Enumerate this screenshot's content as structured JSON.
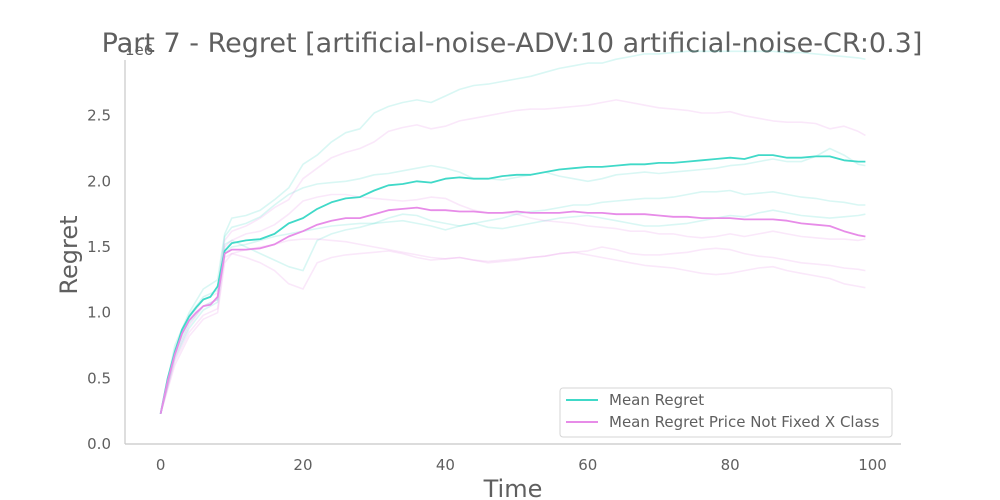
{
  "chart_data": {
    "type": "line",
    "title": "Part 7 - Regret [artificial-noise-ADV:10 artificial-noise-CR:0.3]",
    "xlabel": "Time",
    "ylabel": "Regret",
    "y_exponent_label": "1e6",
    "xlim": [
      -5,
      104
    ],
    "ylim": [
      0,
      3.0
    ],
    "x_ticks": [
      0,
      20,
      40,
      60,
      80,
      100
    ],
    "y_ticks": [
      0.0,
      0.5,
      1.0,
      1.5,
      2.0,
      2.5
    ],
    "x_tick_labels": [
      "0",
      "20",
      "40",
      "60",
      "80",
      "100"
    ],
    "y_tick_labels": [
      "0.0",
      "0.5",
      "1.0",
      "1.5",
      "2.0",
      "2.5"
    ],
    "grid": false,
    "legend_position": "lower-right",
    "series": [
      {
        "name": "Mean Regret",
        "color": "#40d9c8",
        "x": [
          0,
          1,
          2,
          3,
          4,
          5,
          6,
          7,
          8,
          9,
          10,
          12,
          14,
          16,
          18,
          20,
          22,
          24,
          26,
          28,
          30,
          32,
          34,
          36,
          38,
          40,
          42,
          44,
          46,
          48,
          50,
          52,
          54,
          56,
          58,
          60,
          62,
          64,
          66,
          68,
          70,
          72,
          74,
          76,
          78,
          80,
          82,
          84,
          86,
          88,
          90,
          92,
          94,
          96,
          98,
          99
        ],
        "values": [
          0.23,
          0.5,
          0.7,
          0.87,
          0.97,
          1.04,
          1.1,
          1.12,
          1.2,
          1.47,
          1.53,
          1.55,
          1.56,
          1.6,
          1.68,
          1.72,
          1.79,
          1.84,
          1.87,
          1.88,
          1.93,
          1.97,
          1.98,
          2.0,
          1.99,
          2.02,
          2.03,
          2.02,
          2.02,
          2.04,
          2.05,
          2.05,
          2.07,
          2.09,
          2.1,
          2.11,
          2.11,
          2.12,
          2.13,
          2.13,
          2.14,
          2.14,
          2.15,
          2.16,
          2.17,
          2.18,
          2.17,
          2.2,
          2.2,
          2.18,
          2.18,
          2.19,
          2.19,
          2.16,
          2.15,
          2.15
        ]
      },
      {
        "name": "Mean Regret Price Not Fixed X Class",
        "color": "#e78ce8",
        "x": [
          0,
          1,
          2,
          3,
          4,
          5,
          6,
          7,
          8,
          9,
          10,
          12,
          14,
          16,
          18,
          20,
          22,
          24,
          26,
          28,
          30,
          32,
          34,
          36,
          38,
          40,
          42,
          44,
          46,
          48,
          50,
          52,
          54,
          56,
          58,
          60,
          62,
          64,
          66,
          68,
          70,
          72,
          74,
          76,
          78,
          80,
          82,
          84,
          86,
          88,
          90,
          92,
          94,
          96,
          98,
          99
        ],
        "values": [
          0.23,
          0.48,
          0.68,
          0.84,
          0.94,
          1.0,
          1.05,
          1.06,
          1.12,
          1.45,
          1.48,
          1.48,
          1.49,
          1.52,
          1.58,
          1.62,
          1.67,
          1.7,
          1.72,
          1.72,
          1.75,
          1.78,
          1.79,
          1.8,
          1.78,
          1.78,
          1.77,
          1.77,
          1.76,
          1.76,
          1.77,
          1.76,
          1.76,
          1.76,
          1.77,
          1.76,
          1.76,
          1.75,
          1.75,
          1.75,
          1.74,
          1.73,
          1.73,
          1.72,
          1.72,
          1.72,
          1.71,
          1.71,
          1.71,
          1.7,
          1.68,
          1.67,
          1.66,
          1.62,
          1.59,
          1.58
        ]
      },
      {
        "color": "#40d9c8",
        "x": [
          0,
          2,
          4,
          6,
          8,
          9,
          10,
          12,
          14,
          16,
          18,
          20,
          22,
          24,
          26,
          28,
          30,
          32,
          34,
          36,
          38,
          40,
          42,
          44,
          46,
          48,
          50,
          52,
          54,
          56,
          58,
          60,
          62,
          64,
          66,
          68,
          70,
          72,
          74,
          76,
          78,
          80,
          82,
          84,
          86,
          88,
          90,
          92,
          94,
          96,
          98,
          99
        ],
        "values": [
          0.23,
          0.75,
          1.0,
          1.18,
          1.25,
          1.6,
          1.72,
          1.74,
          1.78,
          1.86,
          1.95,
          2.13,
          2.2,
          2.3,
          2.37,
          2.4,
          2.52,
          2.57,
          2.6,
          2.62,
          2.6,
          2.65,
          2.7,
          2.73,
          2.74,
          2.76,
          2.78,
          2.8,
          2.83,
          2.86,
          2.88,
          2.9,
          2.9,
          2.93,
          2.95,
          2.97,
          2.97,
          2.98,
          2.99,
          2.99,
          2.99,
          2.99,
          2.99,
          2.99,
          2.99,
          2.98,
          2.98,
          2.97,
          2.96,
          2.95,
          2.94,
          2.93
        ]
      },
      {
        "color": "#40d9c8",
        "x": [
          0,
          2,
          4,
          6,
          8,
          9,
          10,
          12,
          14,
          16,
          18,
          20,
          22,
          24,
          26,
          28,
          30,
          32,
          34,
          36,
          38,
          40,
          42,
          44,
          46,
          48,
          50,
          52,
          54,
          56,
          58,
          60,
          62,
          64,
          66,
          68,
          70,
          72,
          74,
          76,
          78,
          80,
          82,
          84,
          86,
          88,
          90,
          92,
          94,
          96,
          98,
          99
        ],
        "values": [
          0.23,
          0.72,
          0.98,
          1.12,
          1.17,
          1.58,
          1.65,
          1.68,
          1.73,
          1.82,
          1.9,
          1.95,
          1.98,
          1.99,
          2.0,
          2.02,
          2.05,
          2.06,
          2.08,
          2.1,
          2.12,
          2.1,
          2.07,
          2.02,
          2.02,
          2.01,
          2.03,
          2.05,
          2.07,
          2.04,
          2.02,
          2.0,
          2.02,
          2.05,
          2.06,
          2.07,
          2.06,
          2.07,
          2.08,
          2.09,
          2.1,
          2.12,
          2.13,
          2.15,
          2.17,
          2.15,
          2.15,
          2.19,
          2.25,
          2.2,
          2.13,
          2.12
        ]
      },
      {
        "color": "#40d9c8",
        "x": [
          0,
          2,
          4,
          6,
          8,
          9,
          10,
          12,
          14,
          16,
          18,
          20,
          22,
          24,
          26,
          28,
          30,
          32,
          34,
          36,
          38,
          40,
          42,
          44,
          46,
          48,
          50,
          52,
          54,
          56,
          58,
          60,
          62,
          64,
          66,
          68,
          70,
          72,
          74,
          76,
          78,
          80,
          82,
          84,
          86,
          88,
          90,
          92,
          94,
          96,
          98,
          99
        ],
        "values": [
          0.23,
          0.68,
          0.92,
          1.05,
          1.1,
          1.52,
          1.55,
          1.5,
          1.45,
          1.4,
          1.35,
          1.32,
          1.55,
          1.6,
          1.63,
          1.65,
          1.68,
          1.72,
          1.75,
          1.74,
          1.7,
          1.68,
          1.66,
          1.68,
          1.7,
          1.72,
          1.75,
          1.77,
          1.78,
          1.8,
          1.82,
          1.82,
          1.84,
          1.85,
          1.86,
          1.87,
          1.87,
          1.88,
          1.9,
          1.92,
          1.92,
          1.93,
          1.9,
          1.91,
          1.92,
          1.9,
          1.88,
          1.87,
          1.85,
          1.84,
          1.82,
          1.82
        ]
      },
      {
        "color": "#40d9c8",
        "x": [
          0,
          2,
          4,
          6,
          8,
          9,
          10,
          12,
          14,
          16,
          18,
          20,
          22,
          24,
          26,
          28,
          30,
          32,
          34,
          36,
          38,
          40,
          42,
          44,
          46,
          48,
          50,
          52,
          54,
          56,
          58,
          60,
          62,
          64,
          66,
          68,
          70,
          72,
          74,
          76,
          78,
          80,
          82,
          84,
          86,
          88,
          90,
          92,
          94,
          96,
          98,
          99
        ],
        "values": [
          0.23,
          0.65,
          0.88,
          1.02,
          1.08,
          1.45,
          1.5,
          1.52,
          1.55,
          1.58,
          1.6,
          1.62,
          1.64,
          1.66,
          1.67,
          1.68,
          1.68,
          1.69,
          1.7,
          1.68,
          1.66,
          1.63,
          1.66,
          1.68,
          1.65,
          1.64,
          1.66,
          1.68,
          1.7,
          1.72,
          1.73,
          1.74,
          1.72,
          1.7,
          1.68,
          1.66,
          1.66,
          1.67,
          1.68,
          1.7,
          1.72,
          1.74,
          1.73,
          1.76,
          1.78,
          1.76,
          1.74,
          1.73,
          1.72,
          1.73,
          1.74,
          1.75
        ]
      },
      {
        "color": "#e78ce8",
        "x": [
          0,
          2,
          4,
          6,
          8,
          9,
          10,
          12,
          14,
          16,
          18,
          20,
          22,
          24,
          26,
          28,
          30,
          32,
          34,
          36,
          38,
          40,
          42,
          44,
          46,
          48,
          50,
          52,
          54,
          56,
          58,
          60,
          62,
          64,
          66,
          68,
          70,
          72,
          74,
          76,
          78,
          80,
          82,
          84,
          86,
          88,
          90,
          92,
          94,
          96,
          98,
          99
        ],
        "values": [
          0.23,
          0.7,
          0.95,
          1.1,
          1.15,
          1.55,
          1.62,
          1.66,
          1.72,
          1.8,
          1.86,
          2.02,
          2.1,
          2.18,
          2.22,
          2.25,
          2.3,
          2.38,
          2.41,
          2.43,
          2.4,
          2.42,
          2.46,
          2.48,
          2.5,
          2.52,
          2.54,
          2.55,
          2.55,
          2.56,
          2.57,
          2.58,
          2.6,
          2.62,
          2.6,
          2.58,
          2.56,
          2.55,
          2.54,
          2.52,
          2.52,
          2.53,
          2.5,
          2.48,
          2.46,
          2.45,
          2.45,
          2.44,
          2.4,
          2.42,
          2.38,
          2.35
        ]
      },
      {
        "color": "#e78ce8",
        "x": [
          0,
          2,
          4,
          6,
          8,
          9,
          10,
          12,
          14,
          16,
          18,
          20,
          22,
          24,
          26,
          28,
          30,
          32,
          34,
          36,
          38,
          40,
          42,
          44,
          46,
          48,
          50,
          52,
          54,
          56,
          58,
          60,
          62,
          64,
          66,
          68,
          70,
          72,
          74,
          76,
          78,
          80,
          82,
          84,
          86,
          88,
          90,
          92,
          94,
          96,
          98,
          99
        ],
        "values": [
          0.23,
          0.66,
          0.9,
          1.05,
          1.1,
          1.5,
          1.55,
          1.6,
          1.62,
          1.67,
          1.75,
          1.85,
          1.88,
          1.9,
          1.9,
          1.88,
          1.87,
          1.86,
          1.85,
          1.86,
          1.88,
          1.87,
          1.82,
          1.78,
          1.76,
          1.76,
          1.75,
          1.72,
          1.7,
          1.69,
          1.68,
          1.66,
          1.65,
          1.64,
          1.62,
          1.62,
          1.6,
          1.6,
          1.58,
          1.57,
          1.58,
          1.6,
          1.58,
          1.6,
          1.62,
          1.6,
          1.58,
          1.57,
          1.56,
          1.56,
          1.55,
          1.56
        ]
      },
      {
        "color": "#e78ce8",
        "x": [
          0,
          2,
          4,
          6,
          8,
          9,
          10,
          12,
          14,
          16,
          18,
          20,
          22,
          24,
          26,
          28,
          30,
          32,
          34,
          36,
          38,
          40,
          42,
          44,
          46,
          48,
          50,
          52,
          54,
          56,
          58,
          60,
          62,
          64,
          66,
          68,
          70,
          72,
          74,
          76,
          78,
          80,
          82,
          84,
          86,
          88,
          90,
          92,
          94,
          96,
          98,
          99
        ],
        "values": [
          0.23,
          0.63,
          0.85,
          0.98,
          1.03,
          1.42,
          1.45,
          1.42,
          1.38,
          1.32,
          1.22,
          1.18,
          1.38,
          1.42,
          1.44,
          1.45,
          1.46,
          1.47,
          1.45,
          1.42,
          1.4,
          1.41,
          1.42,
          1.4,
          1.38,
          1.39,
          1.4,
          1.42,
          1.43,
          1.45,
          1.46,
          1.47,
          1.5,
          1.48,
          1.45,
          1.44,
          1.44,
          1.45,
          1.46,
          1.48,
          1.49,
          1.48,
          1.45,
          1.43,
          1.42,
          1.4,
          1.38,
          1.37,
          1.36,
          1.34,
          1.33,
          1.32
        ]
      },
      {
        "color": "#e78ce8",
        "x": [
          0,
          2,
          4,
          6,
          8,
          9,
          10,
          12,
          14,
          16,
          18,
          20,
          22,
          24,
          26,
          28,
          30,
          32,
          34,
          36,
          38,
          40,
          42,
          44,
          46,
          48,
          50,
          52,
          54,
          56,
          58,
          60,
          62,
          64,
          66,
          68,
          70,
          72,
          74,
          76,
          78,
          80,
          82,
          84,
          86,
          88,
          90,
          92,
          94,
          96,
          98,
          99
        ],
        "values": [
          0.23,
          0.6,
          0.82,
          0.95,
          1.0,
          1.38,
          1.45,
          1.48,
          1.5,
          1.52,
          1.55,
          1.56,
          1.56,
          1.55,
          1.54,
          1.52,
          1.5,
          1.48,
          1.46,
          1.44,
          1.42,
          1.41,
          1.42,
          1.4,
          1.39,
          1.4,
          1.41,
          1.42,
          1.43,
          1.45,
          1.46,
          1.44,
          1.42,
          1.4,
          1.38,
          1.36,
          1.35,
          1.34,
          1.32,
          1.3,
          1.29,
          1.3,
          1.32,
          1.34,
          1.35,
          1.32,
          1.3,
          1.28,
          1.26,
          1.22,
          1.2,
          1.19
        ]
      }
    ]
  }
}
